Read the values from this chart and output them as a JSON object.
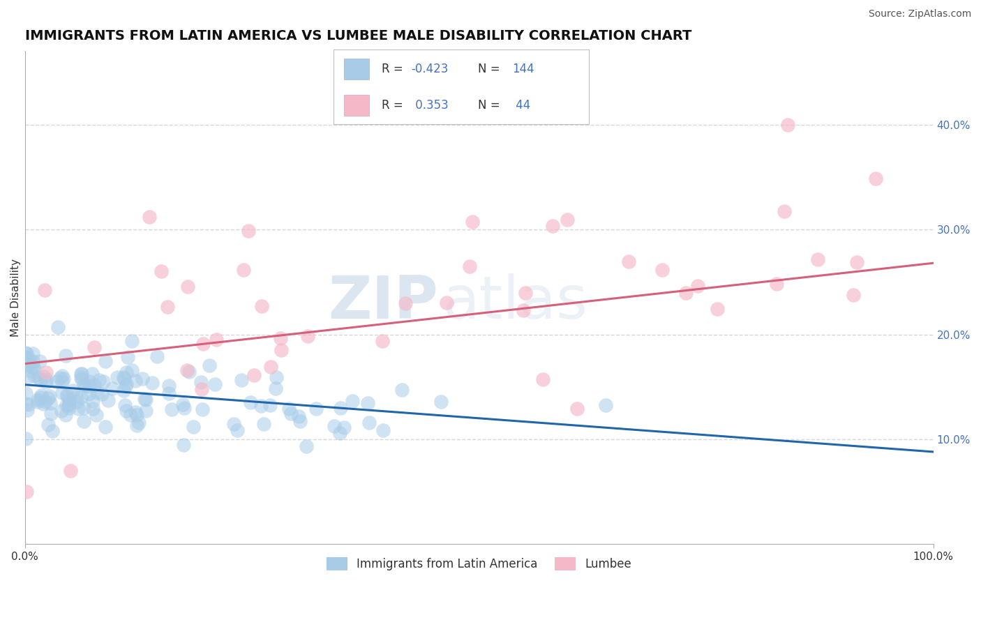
{
  "title": "IMMIGRANTS FROM LATIN AMERICA VS LUMBEE MALE DISABILITY CORRELATION CHART",
  "source": "Source: ZipAtlas.com",
  "ylabel": "Male Disability",
  "watermark_zip": "ZIP",
  "watermark_atlas": "atlas",
  "blue_R": -0.423,
  "blue_N": 144,
  "pink_R": 0.353,
  "pink_N": 44,
  "blue_color": "#a8cce8",
  "pink_color": "#f5b8c8",
  "blue_line_color": "#2166ac",
  "pink_line_color": "#d6607a",
  "legend_blue_label": "Immigrants from Latin America",
  "legend_pink_label": "Lumbee",
  "xlim": [
    0,
    1
  ],
  "ylim": [
    0,
    0.47
  ],
  "yticks": [
    0.1,
    0.2,
    0.3,
    0.4
  ],
  "ytick_labels": [
    "10.0%",
    "20.0%",
    "30.0%",
    "40.0%"
  ],
  "xticks": [
    0.0,
    1.0
  ],
  "xtick_labels": [
    "0.0%",
    "100.0%"
  ],
  "grid_color": "#cccccc",
  "background_color": "#ffffff",
  "title_fontsize": 14,
  "axis_label_fontsize": 11,
  "tick_fontsize": 11,
  "legend_fontsize": 12,
  "source_fontsize": 10,
  "text_color_dark": "#333333",
  "text_color_blue": "#4472c4",
  "text_color_neg": "#e05050"
}
